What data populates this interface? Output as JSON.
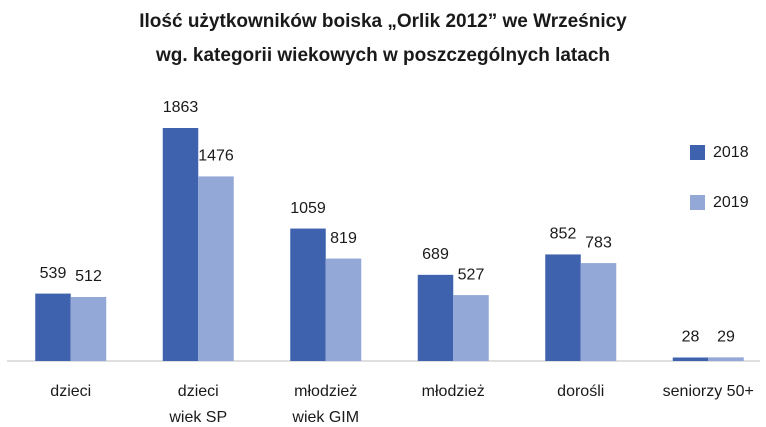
{
  "chart_data": {
    "type": "bar",
    "title": [
      "Ilość  użytkowników  boiska  „Orlik 2012” we Wrześnicy",
      "wg. kategorii wiekowych w poszczególnych  latach"
    ],
    "categories": [
      [
        "dzieci"
      ],
      [
        "dzieci",
        "wiek SP"
      ],
      [
        "młodzież",
        "wiek GIM"
      ],
      [
        "młodzież"
      ],
      [
        "dorośli"
      ],
      [
        "seniorzy 50+"
      ]
    ],
    "series": [
      {
        "name": "2018",
        "color": "#3f62ae",
        "values": [
          539,
          1863,
          1059,
          689,
          852,
          28
        ]
      },
      {
        "name": "2019",
        "color": "#94a8d8",
        "values": [
          512,
          1476,
          819,
          527,
          783,
          29
        ]
      }
    ],
    "legend": "right"
  }
}
